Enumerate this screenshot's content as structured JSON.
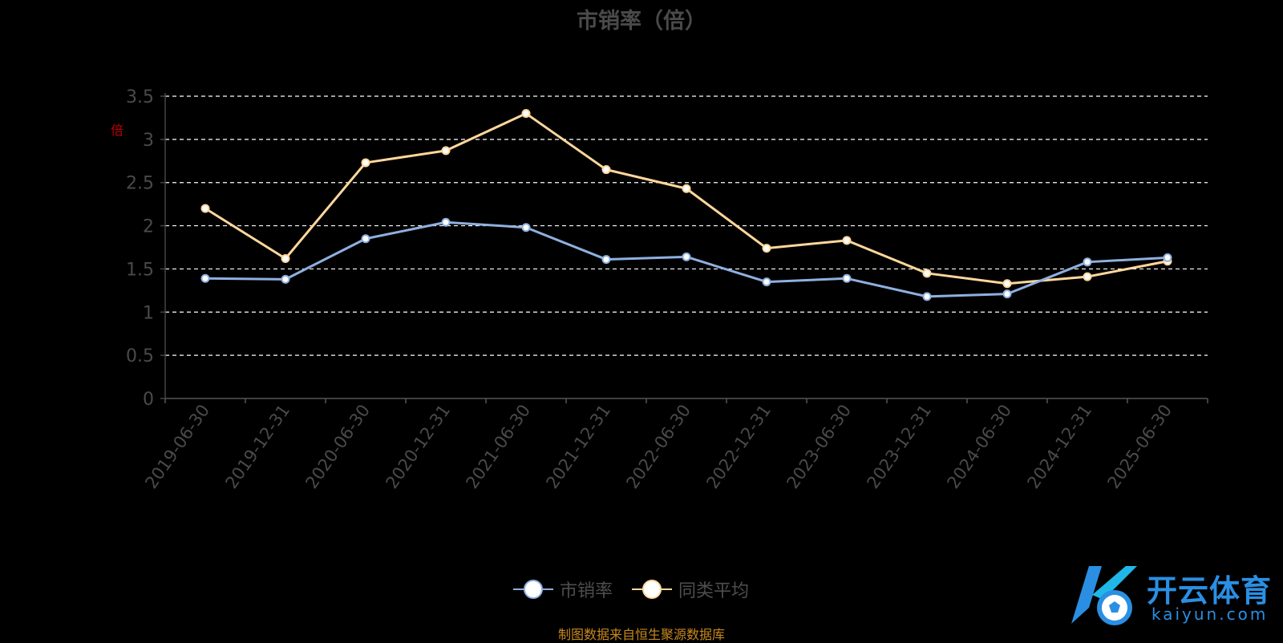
{
  "chart_data": {
    "type": "line",
    "title": "市销率（倍）",
    "unit_label": "倍",
    "categories": [
      "2019-06-30",
      "2019-12-31",
      "2020-06-30",
      "2020-12-31",
      "2021-06-30",
      "2021-12-31",
      "2022-06-30",
      "2022-12-31",
      "2023-06-30",
      "2023-12-31",
      "2024-06-30",
      "2024-12-31",
      "2025-06-30"
    ],
    "series": [
      {
        "name": "市销率",
        "color": "#8fb0e0",
        "values": [
          1.39,
          1.38,
          1.85,
          2.04,
          1.98,
          1.61,
          1.64,
          1.35,
          1.39,
          1.18,
          1.21,
          1.58,
          1.63
        ]
      },
      {
        "name": "同类平均",
        "color": "#ffd79c",
        "values": [
          2.2,
          1.62,
          2.73,
          2.87,
          3.3,
          2.65,
          2.43,
          1.74,
          1.83,
          1.45,
          1.33,
          1.41,
          1.59
        ]
      }
    ],
    "y_ticks": [
      "0",
      "0.5",
      "1",
      "1.5",
      "2",
      "2.5",
      "3",
      "3.5"
    ],
    "ylim": [
      0,
      3.5
    ],
    "grid": true,
    "legend_position": "bottom-center"
  },
  "footer": {
    "source": "制图数据来自恒生聚源数据库"
  },
  "watermark": {
    "cn": "开云体育",
    "en": "kaiyun.com",
    "logo_icon": "k-soccer-ball-logo-icon"
  }
}
